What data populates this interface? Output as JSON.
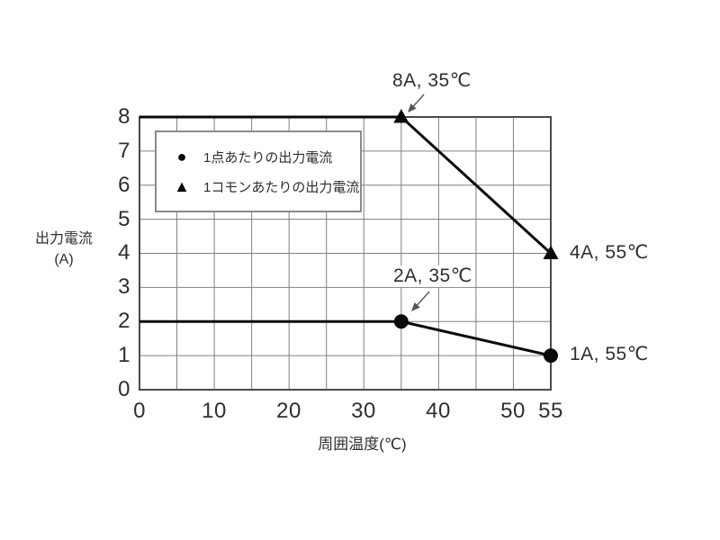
{
  "chart_data": {
    "type": "line",
    "xlabel": "周囲温度(℃)",
    "ylabel_line1": "出力電流",
    "ylabel_line2": "(A)",
    "xlim": [
      0,
      55
    ],
    "ylim": [
      0,
      8
    ],
    "x_gridstep": 5,
    "y_gridstep": 1,
    "grid": true,
    "x_ticks": [
      0,
      10,
      20,
      30,
      40,
      50,
      55
    ],
    "y_ticks": [
      0,
      1,
      2,
      3,
      4,
      5,
      6,
      7,
      8
    ],
    "legend_position": "top-left-inside",
    "series": [
      {
        "name": "1点あたりの出力電流",
        "marker": "circle",
        "color": "#0a0a0a",
        "x": [
          0,
          35,
          55
        ],
        "y": [
          2,
          2,
          1
        ],
        "marker_points": [
          [
            35,
            2
          ],
          [
            55,
            1
          ]
        ]
      },
      {
        "name": "1コモンあたりの出力電流",
        "marker": "triangle",
        "color": "#0a0a0a",
        "x": [
          0,
          35,
          55
        ],
        "y": [
          8,
          8,
          4
        ],
        "marker_points": [
          [
            35,
            8
          ],
          [
            55,
            4
          ]
        ]
      }
    ],
    "annotations": [
      {
        "text": "8A, 35℃",
        "point": [
          35,
          8
        ]
      },
      {
        "text": "4A, 55℃",
        "point": [
          55,
          4
        ]
      },
      {
        "text": "2A, 35℃",
        "point": [
          35,
          2
        ]
      },
      {
        "text": "1A, 55℃",
        "point": [
          55,
          1
        ]
      }
    ]
  },
  "legend": {
    "items": [
      {
        "symbol": "●",
        "label": "1点あたりの出力電流"
      },
      {
        "symbol": "▲",
        "label": "1コモンあたりの出力電流"
      }
    ]
  },
  "colors": {
    "line": "#0a0a0a",
    "marker": "#0a0a0a",
    "grid": "#808080",
    "plot_border": "#4a4a4a",
    "legend_border": "#8a8a8a",
    "arrow": "#555555",
    "text": "#2e2e2e",
    "background": "#ffffff"
  }
}
